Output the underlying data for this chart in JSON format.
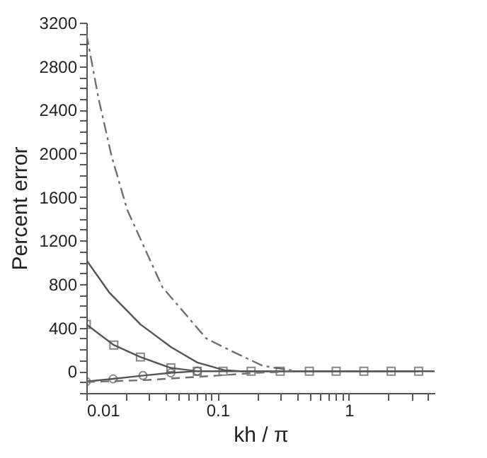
{
  "chart_data": {
    "type": "line",
    "xlabel": "kh / π",
    "ylabel": "Percent error",
    "log": "x",
    "grid": false,
    "xlim": [
      0.01,
      4.5
    ],
    "xticks": [
      0.01,
      {
        "value": 0.02,
        "label": null
      },
      {
        "value": 0.03,
        "label": null
      },
      {
        "value": 0.04,
        "label": null
      },
      {
        "value": 0.05,
        "label": null
      },
      {
        "value": 0.06,
        "label": null
      },
      {
        "value": 0.07,
        "label": null
      },
      {
        "value": 0.08,
        "label": null
      },
      {
        "value": 0.09,
        "label": null
      },
      0.1,
      {
        "value": 0.2,
        "label": null
      },
      {
        "value": 0.3,
        "label": null
      },
      {
        "value": 0.4,
        "label": null
      },
      {
        "value": 0.5,
        "label": null
      },
      {
        "value": 0.6,
        "label": null
      },
      {
        "value": 0.7,
        "label": null
      },
      {
        "value": 0.8,
        "label": null
      },
      {
        "value": 0.9,
        "label": null
      },
      1,
      {
        "value": 2,
        "label": null
      },
      {
        "value": 3,
        "label": null
      },
      {
        "value": 4,
        "label": null
      }
    ],
    "ylim": [
      -200,
      3200
    ],
    "yticks": [
      {
        "value": -200,
        "label": null
      },
      {
        "value": -100,
        "label": null
      },
      0,
      {
        "value": 100,
        "label": null
      },
      {
        "value": 200,
        "label": null
      },
      {
        "value": 300,
        "label": null
      },
      400,
      {
        "value": 500,
        "label": null
      },
      {
        "value": 600,
        "label": null
      },
      {
        "value": 700,
        "label": null
      },
      800,
      {
        "value": 900,
        "label": null
      },
      {
        "value": 1000,
        "label": null
      },
      {
        "value": 1100,
        "label": null
      },
      1200,
      {
        "value": 1300,
        "label": null
      },
      {
        "value": 1400,
        "label": null
      },
      {
        "value": 1500,
        "label": null
      },
      1600,
      {
        "value": 1700,
        "label": null
      },
      {
        "value": 1800,
        "label": null
      },
      {
        "value": 1900,
        "label": null
      },
      2000,
      {
        "value": 2100,
        "label": null
      },
      {
        "value": 2200,
        "label": null
      },
      {
        "value": 2300,
        "label": null
      },
      2400,
      {
        "value": 2500,
        "label": null
      },
      {
        "value": 2600,
        "label": null
      },
      {
        "value": 2700,
        "label": null
      },
      2800,
      {
        "value": 2900,
        "label": null
      },
      {
        "value": 3000,
        "label": null
      },
      {
        "value": 3100,
        "label": null
      },
      3200
    ],
    "series": [
      {
        "color": "#707070",
        "line_style": "dashdot",
        "marker": "none",
        "x": [
          0.01,
          0.0124,
          0.0156,
          0.0205,
          0.038,
          0.082,
          0.13,
          0.22,
          0.4
        ],
        "values": [
          3100,
          2500,
          1970,
          1480,
          770,
          300,
          180,
          50,
          0
        ]
      },
      {
        "color": "#555555",
        "line_style": "solid",
        "marker": "none",
        "x": [
          0.01,
          0.015,
          0.0258,
          0.0443,
          0.07,
          0.112,
          0.15,
          4.5
        ],
        "values": [
          1020,
          720,
          430,
          220,
          80,
          10,
          0,
          0
        ]
      },
      {
        "color": "#555555",
        "line_style": "solid",
        "marker": "square",
        "x": [
          0.01,
          0.0162,
          0.0258,
          0.044,
          0.07,
          0.11,
          0.18,
          0.3,
          0.5,
          0.8,
          1.3,
          2.1,
          3.4
        ],
        "values": [
          430,
          240,
          130,
          30,
          0,
          0,
          0,
          0,
          0,
          0,
          0,
          0,
          0
        ]
      },
      {
        "color": "#555555",
        "line_style": "solid",
        "marker": "circle",
        "x": [
          0.01,
          0.016,
          0.027,
          0.044,
          0.07
        ],
        "values": [
          -95,
          -70,
          -40,
          -15,
          0
        ]
      },
      {
        "color": "#707070",
        "line_style": "dashed",
        "marker": "none",
        "x": [
          0.01,
          0.03,
          0.1,
          0.2,
          0.4
        ],
        "values": [
          -100,
          -80,
          -40,
          -15,
          0
        ]
      }
    ]
  }
}
